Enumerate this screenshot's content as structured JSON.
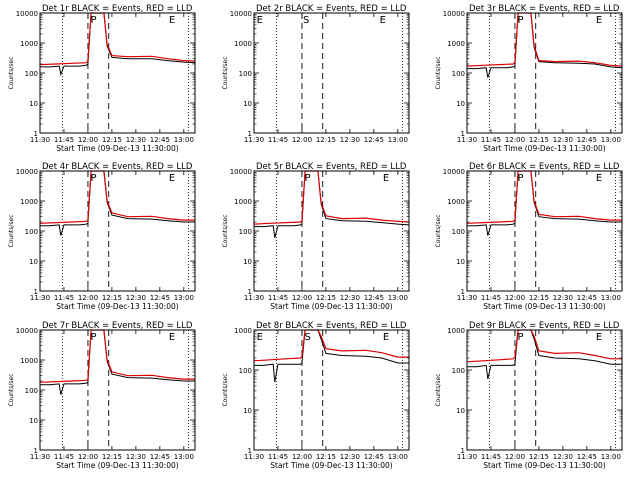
{
  "colors": {
    "background": "#ffffff",
    "events": "#000000",
    "lld": "#dd0000",
    "axes": "#000000"
  },
  "chart_data": [
    {
      "type": "line",
      "title": "Det 1r BLACK = Events, RED = LLD",
      "xlabel": "Start Time (09-Dec-13 11:30:00)",
      "ylabel": "Counts/sec",
      "scale": "log",
      "ylim": [
        1,
        10000
      ],
      "x_ticks": [
        "11:30",
        "11:45",
        "12:00",
        "12:15",
        "12:30",
        "12:45",
        "13:00"
      ],
      "y_ticks": [
        "1",
        "10",
        "100",
        "1000",
        "10000"
      ],
      "event_marks": [
        {
          "label": "P",
          "t": "12:01"
        },
        {
          "label": "E",
          "t": "12:50"
        }
      ],
      "dotted_lines": [
        "11:44",
        "13:03"
      ],
      "dashed_lines": [
        "12:00",
        "12:13"
      ],
      "series": [
        {
          "name": "Events",
          "color": "#000000",
          "x": [
            "11:30",
            "11:36",
            "11:42",
            "11:43",
            "11:45",
            "11:55",
            "11:59",
            "12:00",
            "12:02",
            "12:06",
            "12:10",
            "12:12",
            "12:15",
            "12:25",
            "12:40",
            "12:50",
            "13:00",
            "13:07"
          ],
          "values": [
            160,
            160,
            170,
            90,
            170,
            170,
            180,
            200,
            10000,
            10000,
            10000,
            800,
            330,
            300,
            300,
            260,
            230,
            220
          ]
        },
        {
          "name": "LLD",
          "color": "#dd0000",
          "x": [
            "11:30",
            "11:40",
            "11:50",
            "11:59",
            "12:00",
            "12:02",
            "12:06",
            "12:10",
            "12:12",
            "12:15",
            "12:25",
            "12:40",
            "12:50",
            "13:00",
            "13:07"
          ],
          "values": [
            190,
            200,
            210,
            220,
            260,
            10000,
            10000,
            10000,
            900,
            380,
            350,
            360,
            300,
            260,
            250
          ]
        }
      ]
    },
    {
      "type": "line",
      "title": "Det 2r BLACK = Events, RED = LLD",
      "xlabel": "",
      "ylabel": "Counts/sec",
      "scale": "log",
      "ylim": [
        1,
        10000
      ],
      "x_ticks": [
        "11:30",
        "11:45",
        "12:00",
        "12:15",
        "12:30",
        "12:45",
        "13:00"
      ],
      "y_ticks": [
        "1",
        "10",
        "100",
        "1000",
        "10000"
      ],
      "event_marks": [
        {
          "label": "E",
          "t": "11:31"
        },
        {
          "label": "S",
          "t": "12:00"
        },
        {
          "label": "E",
          "t": "12:48"
        }
      ],
      "dotted_lines": [
        "11:44",
        "13:03"
      ],
      "dashed_lines": [
        "12:00",
        "12:13"
      ],
      "series": []
    },
    {
      "type": "line",
      "title": "Det 3r BLACK = Events, RED = LLD",
      "xlabel": "Start Time (09-Dec-13 11:30:00)",
      "ylabel": "Counts/sec",
      "scale": "log",
      "ylim": [
        1,
        10000
      ],
      "x_ticks": [
        "11:30",
        "11:45",
        "12:00",
        "12:15",
        "12:30",
        "12:45",
        "13:00"
      ],
      "y_ticks": [
        "1",
        "10",
        "100",
        "1000",
        "10000"
      ],
      "event_marks": [
        {
          "label": "P",
          "t": "12:01"
        },
        {
          "label": "E",
          "t": "12:50"
        }
      ],
      "dotted_lines": [
        "11:44",
        "13:03"
      ],
      "dashed_lines": [
        "12:00",
        "12:13"
      ],
      "series": [
        {
          "name": "Events",
          "color": "#000000",
          "x": [
            "11:30",
            "11:36",
            "11:42",
            "11:43",
            "11:45",
            "11:55",
            "11:59",
            "12:00",
            "12:02",
            "12:06",
            "12:10",
            "12:12",
            "12:15",
            "12:25",
            "12:40",
            "12:50",
            "13:00",
            "13:07"
          ],
          "values": [
            140,
            140,
            150,
            70,
            150,
            150,
            160,
            170,
            10000,
            10000,
            10000,
            700,
            240,
            220,
            210,
            200,
            160,
            150
          ]
        },
        {
          "name": "LLD",
          "color": "#dd0000",
          "x": [
            "11:30",
            "11:40",
            "11:50",
            "11:59",
            "12:00",
            "12:02",
            "12:06",
            "12:10",
            "12:12",
            "12:15",
            "12:25",
            "12:40",
            "12:50",
            "13:00",
            "13:07"
          ],
          "values": [
            170,
            180,
            190,
            200,
            230,
            10000,
            10000,
            10000,
            800,
            260,
            240,
            250,
            220,
            180,
            170
          ]
        }
      ]
    },
    {
      "type": "line",
      "title": "Det 4r BLACK = Events, RED = LLD",
      "xlabel": "Start Time (09-Dec-13 11:30:00)",
      "ylabel": "Counts/sec",
      "scale": "log",
      "ylim": [
        1,
        10000
      ],
      "x_ticks": [
        "11:30",
        "11:45",
        "12:00",
        "12:15",
        "12:30",
        "12:45",
        "13:00"
      ],
      "y_ticks": [
        "1",
        "10",
        "100",
        "1000",
        "10000"
      ],
      "event_marks": [
        {
          "label": "P",
          "t": "12:01"
        },
        {
          "label": "E",
          "t": "12:50"
        }
      ],
      "dotted_lines": [
        "11:44",
        "13:03"
      ],
      "dashed_lines": [
        "12:00",
        "12:13"
      ],
      "series": [
        {
          "name": "Events",
          "color": "#000000",
          "x": [
            "11:30",
            "11:36",
            "11:42",
            "11:43",
            "11:45",
            "11:55",
            "11:59",
            "12:00",
            "12:02",
            "12:06",
            "12:10",
            "12:12",
            "12:15",
            "12:25",
            "12:40",
            "12:50",
            "13:00",
            "13:07"
          ],
          "values": [
            150,
            150,
            160,
            70,
            160,
            160,
            170,
            180,
            10000,
            10000,
            10000,
            900,
            340,
            260,
            250,
            220,
            200,
            200
          ]
        },
        {
          "name": "LLD",
          "color": "#dd0000",
          "x": [
            "11:30",
            "11:40",
            "11:50",
            "11:59",
            "12:00",
            "12:02",
            "12:06",
            "12:10",
            "12:12",
            "12:15",
            "12:25",
            "12:40",
            "12:50",
            "13:00",
            "13:07"
          ],
          "values": [
            180,
            190,
            200,
            210,
            230,
            10000,
            10000,
            10000,
            1000,
            400,
            300,
            310,
            260,
            230,
            230
          ]
        }
      ]
    },
    {
      "type": "line",
      "title": "Det 5r BLACK = Events, RED = LLD",
      "xlabel": "Start Time (09-Dec-13 11:30:00)",
      "ylabel": "Counts/sec",
      "scale": "log",
      "ylim": [
        1,
        10000
      ],
      "x_ticks": [
        "11:30",
        "11:45",
        "12:00",
        "12:15",
        "12:30",
        "12:45",
        "13:00"
      ],
      "y_ticks": [
        "1",
        "10",
        "100",
        "1000",
        "10000"
      ],
      "event_marks": [
        {
          "label": "P",
          "t": "12:01"
        },
        {
          "label": "E",
          "t": "12:50"
        }
      ],
      "dotted_lines": [
        "11:44",
        "13:03"
      ],
      "dashed_lines": [
        "12:00",
        "12:13"
      ],
      "series": [
        {
          "name": "Events",
          "color": "#000000",
          "x": [
            "11:30",
            "11:36",
            "11:42",
            "11:43",
            "11:45",
            "11:55",
            "11:59",
            "12:00",
            "12:02",
            "12:06",
            "12:10",
            "12:12",
            "12:15",
            "12:25",
            "12:40",
            "12:50",
            "13:00",
            "13:07"
          ],
          "values": [
            140,
            140,
            150,
            60,
            150,
            150,
            160,
            170,
            10000,
            10000,
            10000,
            800,
            260,
            220,
            210,
            190,
            170,
            160
          ]
        },
        {
          "name": "LLD",
          "color": "#dd0000",
          "x": [
            "11:30",
            "11:40",
            "11:50",
            "11:59",
            "12:00",
            "12:02",
            "12:06",
            "12:10",
            "12:12",
            "12:15",
            "12:25",
            "12:40",
            "12:50",
            "13:00",
            "13:07"
          ],
          "values": [
            170,
            180,
            190,
            200,
            220,
            10000,
            10000,
            10000,
            900,
            320,
            260,
            270,
            230,
            210,
            200
          ]
        }
      ]
    },
    {
      "type": "line",
      "title": "Det 6r BLACK = Events, RED = LLD",
      "xlabel": "Start Time (09-Dec-13 11:30:00)",
      "ylabel": "Counts/sec",
      "scale": "log",
      "ylim": [
        1,
        10000
      ],
      "x_ticks": [
        "11:30",
        "11:45",
        "12:00",
        "12:15",
        "12:30",
        "12:45",
        "13:00"
      ],
      "y_ticks": [
        "1",
        "10",
        "100",
        "1000",
        "10000"
      ],
      "event_marks": [
        {
          "label": "P",
          "t": "12:01"
        },
        {
          "label": "E",
          "t": "12:50"
        }
      ],
      "dotted_lines": [
        "11:44",
        "13:03"
      ],
      "dashed_lines": [
        "12:00",
        "12:13"
      ],
      "series": [
        {
          "name": "Events",
          "color": "#000000",
          "x": [
            "11:30",
            "11:36",
            "11:42",
            "11:43",
            "11:45",
            "11:55",
            "11:59",
            "12:00",
            "12:02",
            "12:06",
            "12:10",
            "12:12",
            "12:15",
            "12:25",
            "12:40",
            "12:50",
            "13:00",
            "13:07"
          ],
          "values": [
            150,
            150,
            160,
            70,
            160,
            160,
            170,
            180,
            10000,
            10000,
            10000,
            900,
            300,
            260,
            250,
            220,
            200,
            200
          ]
        },
        {
          "name": "LLD",
          "color": "#dd0000",
          "x": [
            "11:30",
            "11:40",
            "11:50",
            "11:59",
            "12:00",
            "12:02",
            "12:06",
            "12:10",
            "12:12",
            "12:15",
            "12:25",
            "12:40",
            "12:50",
            "13:00",
            "13:07"
          ],
          "values": [
            180,
            190,
            200,
            210,
            230,
            10000,
            10000,
            10000,
            1000,
            360,
            300,
            310,
            260,
            230,
            230
          ]
        }
      ]
    },
    {
      "type": "line",
      "title": "Det 7r BLACK = Events, RED = LLD",
      "xlabel": "Start Time (09-Dec-13 11:30:00)",
      "ylabel": "Counts/sec",
      "scale": "log",
      "ylim": [
        1,
        10000
      ],
      "x_ticks": [
        "11:30",
        "11:45",
        "12:00",
        "12:15",
        "12:30",
        "12:45",
        "13:00"
      ],
      "y_ticks": [
        "1",
        "10",
        "100",
        "1000",
        "10000"
      ],
      "event_marks": [
        {
          "label": "P",
          "t": "12:01"
        },
        {
          "label": "E",
          "t": "12:50"
        }
      ],
      "dotted_lines": [
        "11:44",
        "13:03"
      ],
      "dashed_lines": [
        "12:00",
        "12:13"
      ],
      "series": [
        {
          "name": "Events",
          "color": "#000000",
          "x": [
            "11:30",
            "11:36",
            "11:42",
            "11:43",
            "11:45",
            "11:55",
            "11:59",
            "12:00",
            "12:02",
            "12:06",
            "12:10",
            "12:12",
            "12:15",
            "12:25",
            "12:40",
            "12:50",
            "13:00",
            "13:07"
          ],
          "values": [
            150,
            150,
            160,
            70,
            160,
            160,
            170,
            180,
            10000,
            10000,
            10000,
            900,
            340,
            260,
            250,
            220,
            200,
            200
          ]
        },
        {
          "name": "LLD",
          "color": "#dd0000",
          "x": [
            "11:30",
            "11:40",
            "11:50",
            "11:59",
            "12:00",
            "12:02",
            "12:06",
            "12:10",
            "12:12",
            "12:15",
            "12:25",
            "12:40",
            "12:50",
            "13:00",
            "13:07"
          ],
          "values": [
            180,
            190,
            200,
            210,
            230,
            10000,
            10000,
            10000,
            1000,
            400,
            300,
            310,
            260,
            230,
            230
          ]
        }
      ]
    },
    {
      "type": "line",
      "title": "Det 8r BLACK = Events, RED = LLD",
      "xlabel": "Start Time (09-Dec-13 11:30:00)",
      "ylabel": "Counts/sec",
      "scale": "log",
      "ylim": [
        1,
        1000
      ],
      "x_ticks": [
        "11:30",
        "11:45",
        "12:00",
        "12:15",
        "12:30",
        "12:45",
        "13:00"
      ],
      "y_ticks": [
        "1",
        "10",
        "100",
        "1000"
      ],
      "event_marks": [
        {
          "label": "E",
          "t": "11:31"
        },
        {
          "label": "S",
          "t": "12:01"
        },
        {
          "label": "E",
          "t": "12:50"
        }
      ],
      "dotted_lines": [
        "11:44",
        "13:03"
      ],
      "dashed_lines": [
        "12:00",
        "12:13"
      ],
      "series": [
        {
          "name": "Events",
          "color": "#000000",
          "x": [
            "11:30",
            "11:36",
            "11:42",
            "11:43",
            "11:45",
            "11:55",
            "11:59",
            "12:00",
            "12:02",
            "12:06",
            "12:10",
            "12:12",
            "12:15",
            "12:25",
            "12:40",
            "12:50",
            "13:00",
            "13:07"
          ],
          "values": [
            130,
            130,
            140,
            50,
            140,
            140,
            140,
            150,
            1000,
            1000,
            1000,
            600,
            260,
            230,
            220,
            200,
            150,
            150
          ]
        },
        {
          "name": "LLD",
          "color": "#dd0000",
          "x": [
            "11:30",
            "11:40",
            "11:50",
            "11:59",
            "12:00",
            "12:02",
            "12:06",
            "12:10",
            "12:12",
            "12:15",
            "12:25",
            "12:40",
            "12:50",
            "13:00",
            "13:07"
          ],
          "values": [
            170,
            180,
            190,
            200,
            220,
            1000,
            1000,
            1000,
            700,
            340,
            300,
            310,
            270,
            210,
            210
          ]
        }
      ]
    },
    {
      "type": "line",
      "title": "Det 9r BLACK = Events, RED = LLD",
      "xlabel": "Start Time (09-Dec-13 11:30:00)",
      "ylabel": "Counts/sec",
      "scale": "log",
      "ylim": [
        1,
        1000
      ],
      "x_ticks": [
        "11:30",
        "11:45",
        "12:00",
        "12:15",
        "12:30",
        "12:45",
        "13:00"
      ],
      "y_ticks": [
        "1",
        "10",
        "100",
        "1000"
      ],
      "event_marks": [
        {
          "label": "P",
          "t": "12:01"
        },
        {
          "label": "E",
          "t": "12:50"
        }
      ],
      "dotted_lines": [
        "11:44",
        "13:03"
      ],
      "dashed_lines": [
        "12:00",
        "12:13"
      ],
      "series": [
        {
          "name": "Events",
          "color": "#000000",
          "x": [
            "11:30",
            "11:36",
            "11:42",
            "11:43",
            "11:45",
            "11:55",
            "11:59",
            "12:00",
            "12:02",
            "12:06",
            "12:10",
            "12:12",
            "12:15",
            "12:25",
            "12:40",
            "12:50",
            "13:00",
            "13:07"
          ],
          "values": [
            120,
            120,
            130,
            60,
            130,
            130,
            130,
            140,
            1000,
            1000,
            1000,
            600,
            230,
            200,
            190,
            170,
            140,
            140
          ]
        },
        {
          "name": "LLD",
          "color": "#dd0000",
          "x": [
            "11:30",
            "11:40",
            "11:50",
            "11:59",
            "12:00",
            "12:02",
            "12:06",
            "12:10",
            "12:12",
            "12:15",
            "12:25",
            "12:40",
            "12:50",
            "13:00",
            "13:07"
          ],
          "values": [
            160,
            170,
            180,
            190,
            210,
            1000,
            1000,
            1000,
            700,
            300,
            260,
            270,
            230,
            190,
            190
          ]
        }
      ]
    }
  ]
}
